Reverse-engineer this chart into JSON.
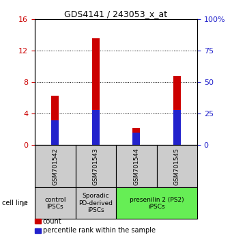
{
  "title": "GDS4141 / 243053_x_at",
  "samples": [
    "GSM701542",
    "GSM701543",
    "GSM701544",
    "GSM701545"
  ],
  "count_values": [
    6.3,
    13.6,
    2.2,
    8.8
  ],
  "percentile_values": [
    20,
    28,
    10,
    28
  ],
  "ylim_left": [
    0,
    16
  ],
  "ylim_right": [
    0,
    100
  ],
  "yticks_left": [
    0,
    4,
    8,
    12,
    16
  ],
  "yticks_right_vals": [
    0,
    25,
    50,
    75,
    100
  ],
  "yticks_right_labels": [
    "0",
    "25",
    "50",
    "75",
    "100%"
  ],
  "bar_width": 0.18,
  "count_color": "#cc0000",
  "percentile_color": "#2222cc",
  "groups": [
    {
      "label": "control\nIPSCs",
      "span": [
        0,
        0
      ],
      "color": "#cccccc"
    },
    {
      "label": "Sporadic\nPD-derived\niPSCs",
      "span": [
        1,
        1
      ],
      "color": "#cccccc"
    },
    {
      "label": "presenilin 2 (PS2)\niPSCs",
      "span": [
        2,
        3
      ],
      "color": "#66ee55"
    }
  ],
  "group_header": "cell line",
  "legend_count_label": "count",
  "legend_percentile_label": "percentile rank within the sample",
  "sample_box_color": "#cccccc",
  "background_color": "#ffffff",
  "title_fontsize": 9,
  "axis_fontsize": 8,
  "label_fontsize": 6.5
}
